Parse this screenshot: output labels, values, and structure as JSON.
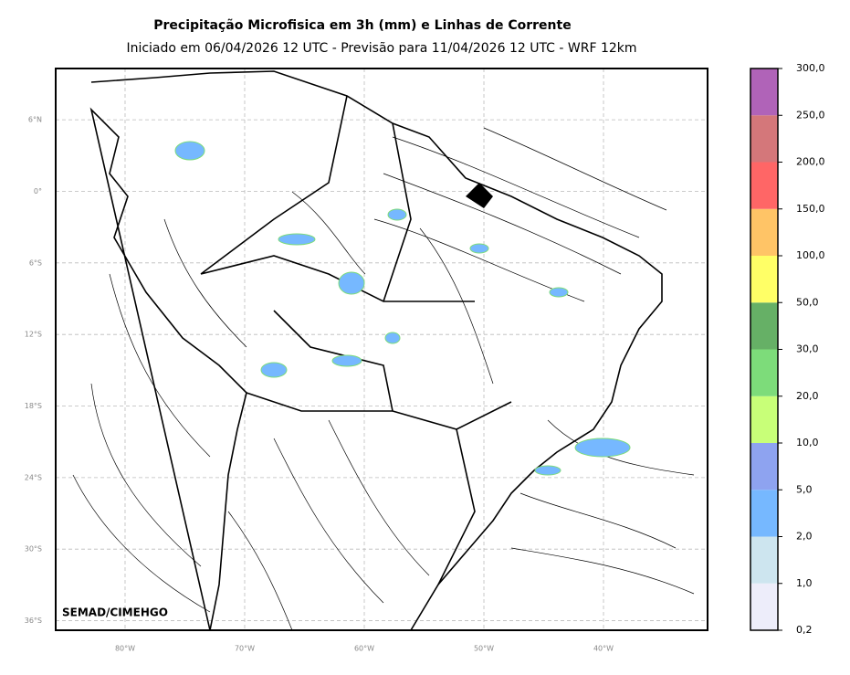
{
  "header": {
    "title": "Precipitação Microfisica em 3h (mm) e Linhas de Corrente",
    "subtitle": "Iniciado em 06/04/2026 12 UTC - Previsão para 11/04/2026 12 UTC - WRF 12km"
  },
  "map": {
    "latlim": [
      -36.8,
      10.3
    ],
    "lonlim": [
      -85.8,
      -31.3
    ],
    "latticks": [
      {
        "value": 6,
        "label": "6°N"
      },
      {
        "value": 0,
        "label": "0°"
      },
      {
        "value": -6,
        "label": "6°S"
      },
      {
        "value": -12,
        "label": "12°S"
      },
      {
        "value": -18,
        "label": "18°S"
      },
      {
        "value": -24,
        "label": "24°S"
      },
      {
        "value": -30,
        "label": "30°S"
      },
      {
        "value": -36,
        "label": "36°S"
      }
    ],
    "lonticks": [
      {
        "value": -80,
        "label": "80°W"
      },
      {
        "value": -70,
        "label": "70°W"
      },
      {
        "value": -60,
        "label": "60°W"
      },
      {
        "value": -50,
        "label": "50°W"
      },
      {
        "value": -40,
        "label": "40°W"
      }
    ],
    "grid": true
  },
  "watermark": "SEMAD/CIMEHGO",
  "colorbar": {
    "ticks": [
      {
        "value": 0.2,
        "label": "0,2"
      },
      {
        "value": 1,
        "label": "1,0"
      },
      {
        "value": 2,
        "label": "2,0"
      },
      {
        "value": 5,
        "label": "5,0"
      },
      {
        "value": 10,
        "label": "10,0"
      },
      {
        "value": 20,
        "label": "20,0"
      },
      {
        "value": 30,
        "label": "30,0"
      },
      {
        "value": 50,
        "label": "50,0"
      },
      {
        "value": 100,
        "label": "100,0"
      },
      {
        "value": 150,
        "label": "150,0"
      },
      {
        "value": 200,
        "label": "200,0"
      },
      {
        "value": 250,
        "label": "250,0"
      },
      {
        "value": 300,
        "label": "300,0"
      }
    ],
    "colors": [
      "#ededfa",
      "#cde5ef",
      "#76b8ff",
      "#8ea3f0",
      "#c8ff78",
      "#7ddc7a",
      "#66b066",
      "#ffff66",
      "#ffc466",
      "#ff6666",
      "#d4777a",
      "#b063b8"
    ]
  }
}
